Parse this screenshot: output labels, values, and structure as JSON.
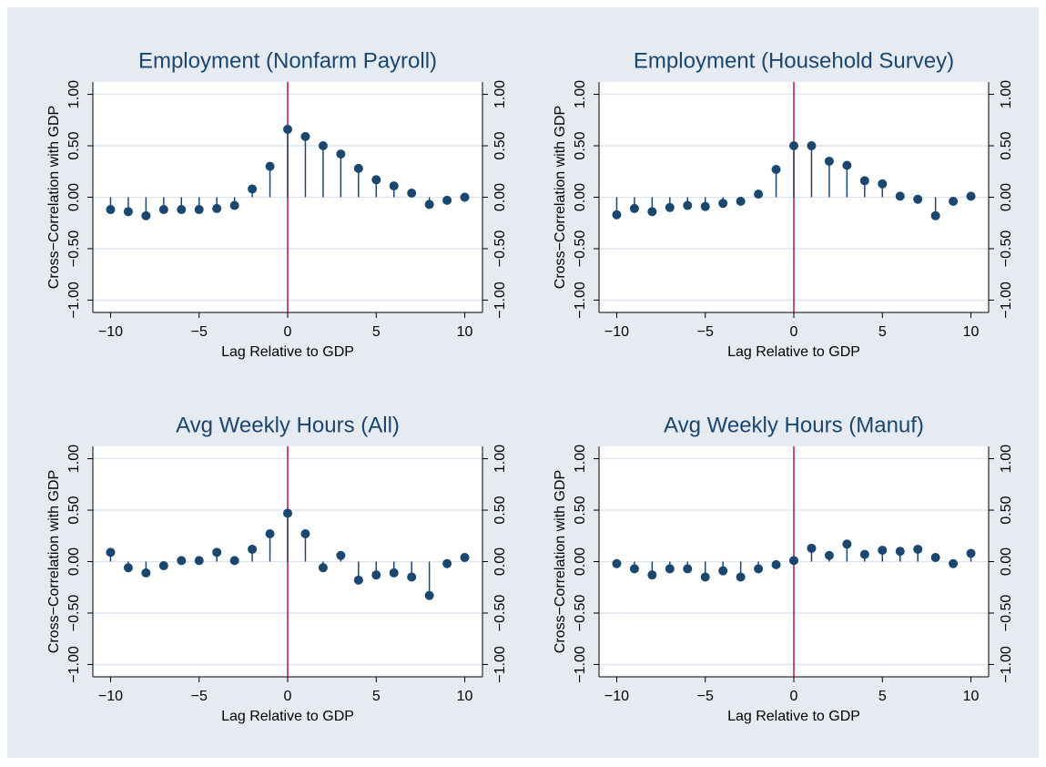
{
  "chart_data": [
    {
      "type": "stem",
      "title": "Employment (Nonfarm Payroll)",
      "xlabel": "Lag Relative to GDP",
      "ylabel": "Cross−Correlation with GDP",
      "x": [
        -10,
        -9,
        -8,
        -7,
        -6,
        -5,
        -4,
        -3,
        -2,
        -1,
        0,
        1,
        2,
        3,
        4,
        5,
        6,
        7,
        8,
        9,
        10
      ],
      "values": [
        -0.12,
        -0.14,
        -0.18,
        -0.12,
        -0.12,
        -0.12,
        -0.11,
        -0.08,
        0.08,
        0.3,
        0.66,
        0.59,
        0.5,
        0.42,
        0.28,
        0.17,
        0.11,
        0.04,
        -0.07,
        -0.03,
        0.0
      ],
      "color": "#1a476f",
      "xline": 0,
      "xline_color": "#c0103f",
      "xlim": [
        -11,
        11
      ],
      "xticks": [
        {
          "value": -10,
          "label": "−10"
        },
        {
          "value": -5,
          "label": "−5"
        },
        0,
        5,
        10
      ],
      "ylim": [
        -1.12,
        1.12
      ],
      "yticks": [
        {
          "value": -1,
          "label": "−1.00"
        },
        {
          "value": -0.5,
          "label": "−0.50"
        },
        {
          "value": 0,
          "label": "0.00"
        },
        {
          "value": 0.5,
          "label": "0.50"
        },
        {
          "value": 1,
          "label": "1.00"
        }
      ],
      "grid": true
    },
    {
      "type": "stem",
      "title": "Employment (Household Survey)",
      "xlabel": "Lag Relative to GDP",
      "ylabel": "Cross−Correlation with GDP",
      "x": [
        -10,
        -9,
        -8,
        -7,
        -6,
        -5,
        -4,
        -3,
        -2,
        -1,
        0,
        1,
        2,
        3,
        4,
        5,
        6,
        7,
        8,
        9,
        10
      ],
      "values": [
        -0.17,
        -0.11,
        -0.14,
        -0.1,
        -0.08,
        -0.09,
        -0.06,
        -0.04,
        0.03,
        0.27,
        0.5,
        0.5,
        0.35,
        0.31,
        0.16,
        0.13,
        0.01,
        -0.02,
        -0.18,
        -0.04,
        0.01
      ],
      "color": "#1a476f",
      "xline": 0,
      "xline_color": "#c0103f",
      "xlim": [
        -11,
        11
      ],
      "xticks": [
        {
          "value": -10,
          "label": "−10"
        },
        {
          "value": -5,
          "label": "−5"
        },
        0,
        5,
        10
      ],
      "ylim": [
        -1.12,
        1.12
      ],
      "yticks": [
        {
          "value": -1,
          "label": "−1.00"
        },
        {
          "value": -0.5,
          "label": "−0.50"
        },
        {
          "value": 0,
          "label": "0.00"
        },
        {
          "value": 0.5,
          "label": "0.50"
        },
        {
          "value": 1,
          "label": "1.00"
        }
      ],
      "grid": true
    },
    {
      "type": "stem",
      "title": "Avg Weekly Hours (All)",
      "xlabel": "Lag Relative to GDP",
      "ylabel": "Cross−Correlation with GDP",
      "x": [
        -10,
        -9,
        -8,
        -7,
        -6,
        -5,
        -4,
        -3,
        -2,
        -1,
        0,
        1,
        2,
        3,
        4,
        5,
        6,
        7,
        8,
        9,
        10
      ],
      "values": [
        0.09,
        -0.06,
        -0.11,
        -0.04,
        0.01,
        0.01,
        0.09,
        0.01,
        0.12,
        0.27,
        0.47,
        0.27,
        -0.06,
        0.06,
        -0.18,
        -0.13,
        -0.11,
        -0.15,
        -0.33,
        -0.02,
        0.04
      ],
      "color": "#1a476f",
      "xline": 0,
      "xline_color": "#c0103f",
      "xlim": [
        -11,
        11
      ],
      "xticks": [
        {
          "value": -10,
          "label": "−10"
        },
        {
          "value": -5,
          "label": "−5"
        },
        0,
        5,
        10
      ],
      "ylim": [
        -1.12,
        1.12
      ],
      "yticks": [
        {
          "value": -1,
          "label": "−1.00"
        },
        {
          "value": -0.5,
          "label": "−0.50"
        },
        {
          "value": 0,
          "label": "0.00"
        },
        {
          "value": 0.5,
          "label": "0.50"
        },
        {
          "value": 1,
          "label": "1.00"
        }
      ],
      "grid": true
    },
    {
      "type": "stem",
      "title": "Avg Weekly Hours (Manuf)",
      "xlabel": "Lag Relative to GDP",
      "ylabel": "Cross−Correlation with GDP",
      "x": [
        -10,
        -9,
        -8,
        -7,
        -6,
        -5,
        -4,
        -3,
        -2,
        -1,
        0,
        1,
        2,
        3,
        4,
        5,
        6,
        7,
        8,
        9,
        10
      ],
      "values": [
        -0.02,
        -0.07,
        -0.13,
        -0.07,
        -0.07,
        -0.15,
        -0.09,
        -0.15,
        -0.07,
        -0.03,
        0.01,
        0.13,
        0.06,
        0.17,
        0.07,
        0.11,
        0.1,
        0.12,
        0.04,
        -0.02,
        0.08
      ],
      "color": "#1a476f",
      "xline": 0,
      "xline_color": "#c0103f",
      "xlim": [
        -11,
        11
      ],
      "xticks": [
        {
          "value": -10,
          "label": "−10"
        },
        {
          "value": -5,
          "label": "−5"
        },
        0,
        5,
        10
      ],
      "ylim": [
        -1.12,
        1.12
      ],
      "yticks": [
        {
          "value": -1,
          "label": "−1.00"
        },
        {
          "value": -0.5,
          "label": "−0.50"
        },
        {
          "value": 0,
          "label": "0.00"
        },
        {
          "value": 0.5,
          "label": "0.50"
        },
        {
          "value": 1,
          "label": "1.00"
        }
      ],
      "grid": true
    }
  ]
}
